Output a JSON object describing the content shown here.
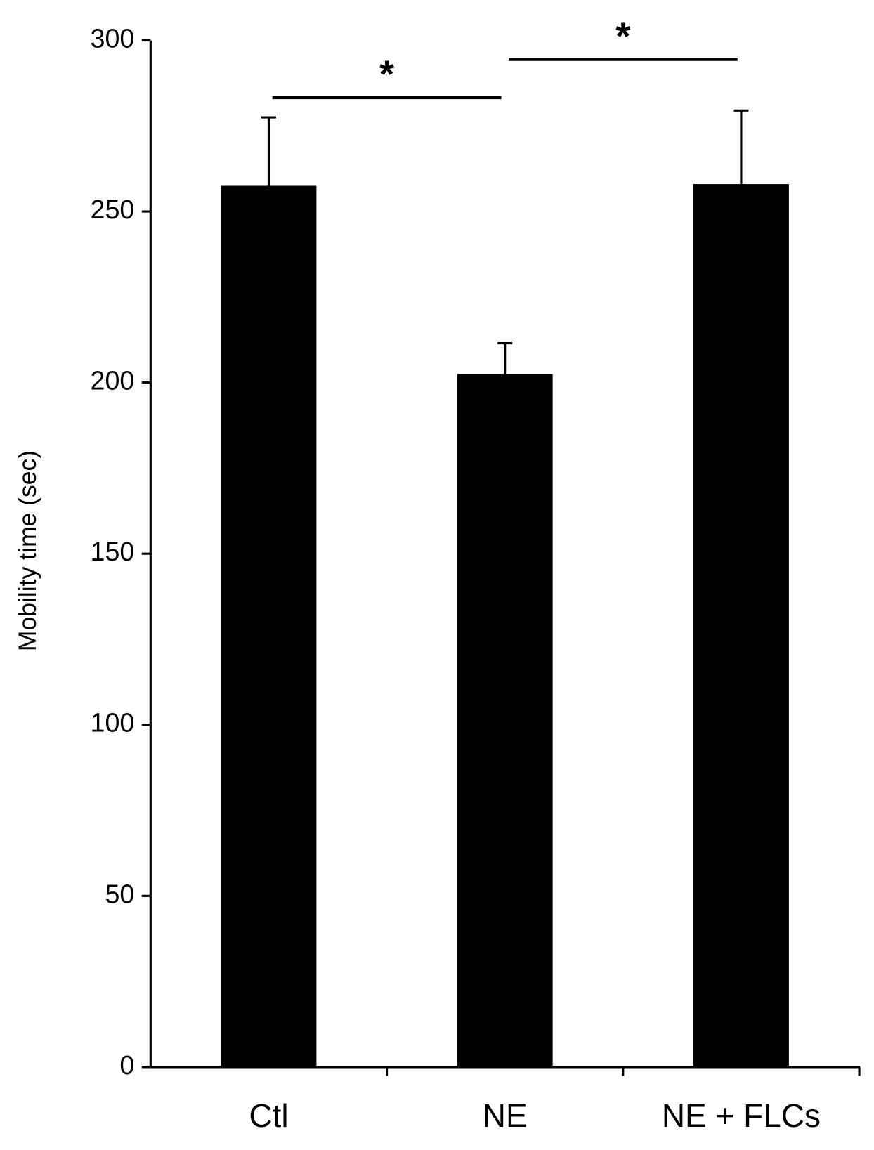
{
  "chart_data": {
    "type": "bar",
    "y_label": "Mobility time (sec)",
    "categories": [
      "Ctl",
      "NE",
      "NE + FLCs"
    ],
    "values": [
      257.5,
      202.5,
      258
    ],
    "errors": [
      20,
      9,
      21.5
    ],
    "color": "#000000",
    "ylim": [
      0,
      300
    ],
    "yticks": [
      0,
      50,
      100,
      150,
      200,
      250,
      300
    ],
    "grid": false,
    "annotations": [
      "*",
      "*"
    ]
  }
}
